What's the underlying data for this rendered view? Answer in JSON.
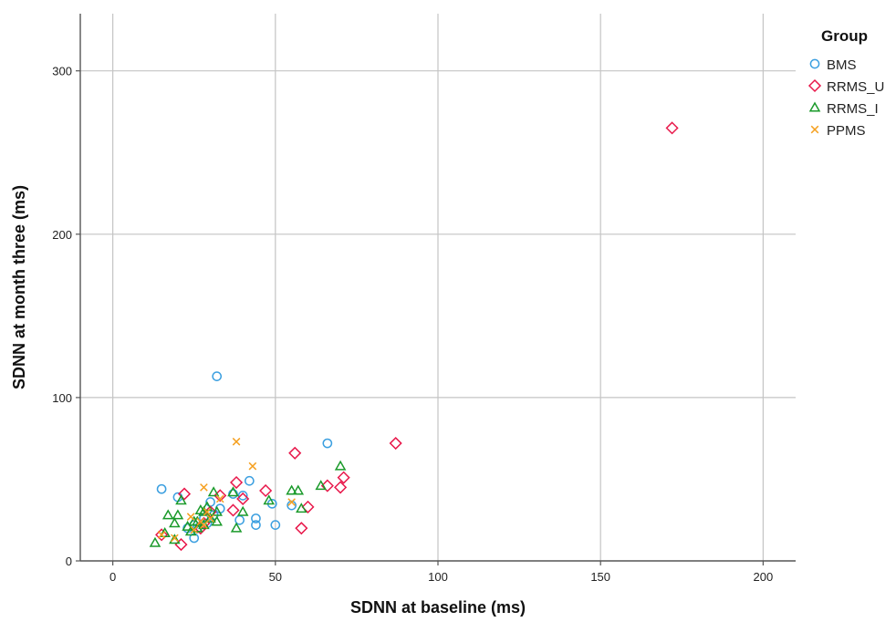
{
  "chart_data": {
    "type": "scatter",
    "title": "",
    "xlabel": "SDNN at baseline (ms)",
    "ylabel": "SDNN at month three (ms)",
    "xlim": [
      -10,
      210
    ],
    "ylim": [
      0,
      335
    ],
    "x_ticks": [
      0,
      50,
      100,
      150,
      200
    ],
    "y_ticks": [
      0,
      100,
      200,
      300
    ],
    "grid": true,
    "legend": {
      "title": "Group",
      "placement": "right"
    },
    "series": [
      {
        "name": "BMS",
        "marker": "circle",
        "color": "#3b9fe0",
        "points": [
          [
            15,
            44
          ],
          [
            20,
            39
          ],
          [
            23,
            20
          ],
          [
            25,
            14
          ],
          [
            25,
            22
          ],
          [
            26,
            20
          ],
          [
            29,
            23
          ],
          [
            30,
            36
          ],
          [
            31,
            28
          ],
          [
            32,
            113
          ],
          [
            33,
            32
          ],
          [
            37,
            41
          ],
          [
            39,
            25
          ],
          [
            40,
            40
          ],
          [
            42,
            49
          ],
          [
            44,
            26
          ],
          [
            44,
            22
          ],
          [
            49,
            35
          ],
          [
            50,
            22
          ],
          [
            55,
            34
          ],
          [
            66,
            72
          ],
          [
            28,
            26
          ]
        ]
      },
      {
        "name": "RRMS_U",
        "marker": "diamond",
        "color": "#e8174a",
        "points": [
          [
            15,
            16
          ],
          [
            21,
            10
          ],
          [
            22,
            41
          ],
          [
            27,
            20
          ],
          [
            28,
            23
          ],
          [
            30,
            30
          ],
          [
            33,
            40
          ],
          [
            37,
            31
          ],
          [
            38,
            48
          ],
          [
            40,
            38
          ],
          [
            47,
            43
          ],
          [
            56,
            66
          ],
          [
            58,
            20
          ],
          [
            60,
            33
          ],
          [
            66,
            46
          ],
          [
            70,
            45
          ],
          [
            71,
            51
          ],
          [
            87,
            72
          ],
          [
            172,
            265
          ]
        ]
      },
      {
        "name": "RRMS_I",
        "marker": "triangle",
        "color": "#1a9a2a",
        "points": [
          [
            13,
            11
          ],
          [
            16,
            17
          ],
          [
            17,
            28
          ],
          [
            19,
            13
          ],
          [
            19,
            23
          ],
          [
            20,
            28
          ],
          [
            21,
            37
          ],
          [
            23,
            21
          ],
          [
            24,
            18
          ],
          [
            25,
            24
          ],
          [
            26,
            20
          ],
          [
            27,
            31
          ],
          [
            28,
            30
          ],
          [
            29,
            33
          ],
          [
            30,
            26
          ],
          [
            31,
            42
          ],
          [
            32,
            24
          ],
          [
            32,
            30
          ],
          [
            37,
            42
          ],
          [
            38,
            20
          ],
          [
            40,
            30
          ],
          [
            48,
            37
          ],
          [
            55,
            43
          ],
          [
            57,
            43
          ],
          [
            58,
            32
          ],
          [
            64,
            46
          ],
          [
            70,
            58
          ],
          [
            26,
            24
          ],
          [
            28,
            22
          ]
        ]
      },
      {
        "name": "PPMS",
        "marker": "x",
        "color": "#f5a020",
        "points": [
          [
            15,
            16
          ],
          [
            19,
            14
          ],
          [
            24,
            27
          ],
          [
            27,
            24
          ],
          [
            28,
            45
          ],
          [
            28,
            22
          ],
          [
            30,
            26
          ],
          [
            33,
            38
          ],
          [
            38,
            73
          ],
          [
            43,
            58
          ],
          [
            55,
            36
          ],
          [
            25,
            19
          ],
          [
            29,
            30
          ]
        ]
      }
    ]
  }
}
